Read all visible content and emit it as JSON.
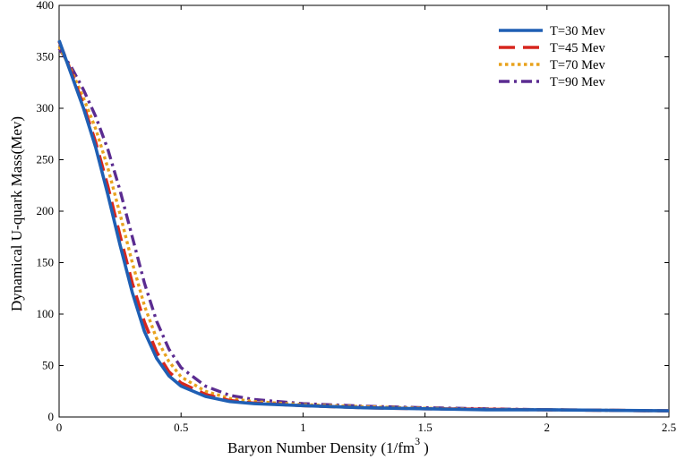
{
  "chart_data": {
    "type": "line",
    "xlabel": "Baryon Number Density  (1/fm",
    "xlabel_superscript": "3",
    "xlabel_close": ")",
    "ylabel": "Dynamical U-quark Mass(Mev)",
    "xlim": [
      0,
      2.5
    ],
    "ylim": [
      0,
      400
    ],
    "x_ticks": [
      0,
      0.5,
      1,
      1.5,
      2,
      2.5
    ],
    "x_tick_labels": [
      "0",
      "0.5",
      "1",
      "1.5",
      "2",
      "2.5"
    ],
    "y_ticks": [
      0,
      50,
      100,
      150,
      200,
      250,
      300,
      350,
      400
    ],
    "y_tick_labels": [
      "0",
      "50",
      "100",
      "150",
      "200",
      "250",
      "300",
      "350",
      "400"
    ],
    "grid": false,
    "legend_position": "top-right",
    "series": [
      {
        "name": "T=30 Mev",
        "color": "#1f5fb4",
        "dash": "solid",
        "points": [
          [
            0,
            366
          ],
          [
            0.05,
            333
          ],
          [
            0.1,
            300
          ],
          [
            0.15,
            262
          ],
          [
            0.2,
            216
          ],
          [
            0.25,
            167
          ],
          [
            0.3,
            121
          ],
          [
            0.35,
            83
          ],
          [
            0.4,
            57
          ],
          [
            0.45,
            40
          ],
          [
            0.5,
            30
          ],
          [
            0.6,
            20
          ],
          [
            0.7,
            15
          ],
          [
            0.8,
            13
          ],
          [
            1,
            11
          ],
          [
            1.25,
            9
          ],
          [
            1.5,
            8
          ],
          [
            1.75,
            7
          ],
          [
            2,
            7
          ],
          [
            2.5,
            6
          ]
        ]
      },
      {
        "name": "T=45 Mev",
        "color": "#d7261e",
        "dash": "long-dash",
        "points": [
          [
            0,
            365
          ],
          [
            0.05,
            335
          ],
          [
            0.1,
            303
          ],
          [
            0.15,
            267
          ],
          [
            0.2,
            224
          ],
          [
            0.25,
            176
          ],
          [
            0.3,
            130
          ],
          [
            0.35,
            92
          ],
          [
            0.4,
            63
          ],
          [
            0.45,
            44
          ],
          [
            0.5,
            33
          ],
          [
            0.6,
            22
          ],
          [
            0.7,
            16
          ],
          [
            0.8,
            13.5
          ],
          [
            1,
            11
          ],
          [
            1.25,
            9
          ],
          [
            1.5,
            8
          ],
          [
            1.75,
            7.5
          ],
          [
            2,
            7
          ],
          [
            2.5,
            6
          ]
        ]
      },
      {
        "name": "T=70 Mev",
        "color": "#e8a21d",
        "dash": "dotted",
        "points": [
          [
            0,
            360
          ],
          [
            0.05,
            337
          ],
          [
            0.1,
            310
          ],
          [
            0.15,
            280
          ],
          [
            0.2,
            242
          ],
          [
            0.25,
            197
          ],
          [
            0.3,
            150
          ],
          [
            0.35,
            108
          ],
          [
            0.4,
            76
          ],
          [
            0.45,
            54
          ],
          [
            0.5,
            39
          ],
          [
            0.6,
            25
          ],
          [
            0.7,
            18
          ],
          [
            0.8,
            15
          ],
          [
            1,
            12
          ],
          [
            1.25,
            10
          ],
          [
            1.5,
            8.5
          ],
          [
            1.75,
            7.5
          ],
          [
            2,
            7
          ],
          [
            2.5,
            6
          ]
        ]
      },
      {
        "name": "T=90 Mev",
        "color": "#5b2c91",
        "dash": "dash-dot",
        "points": [
          [
            0,
            358
          ],
          [
            0.05,
            340
          ],
          [
            0.1,
            318
          ],
          [
            0.15,
            292
          ],
          [
            0.2,
            260
          ],
          [
            0.25,
            220
          ],
          [
            0.3,
            175
          ],
          [
            0.35,
            130
          ],
          [
            0.4,
            93
          ],
          [
            0.45,
            66
          ],
          [
            0.5,
            48
          ],
          [
            0.6,
            30
          ],
          [
            0.7,
            21
          ],
          [
            0.8,
            17
          ],
          [
            1,
            13
          ],
          [
            1.25,
            10.5
          ],
          [
            1.5,
            9
          ],
          [
            1.75,
            8
          ],
          [
            2,
            7
          ],
          [
            2.5,
            6
          ]
        ]
      }
    ]
  }
}
